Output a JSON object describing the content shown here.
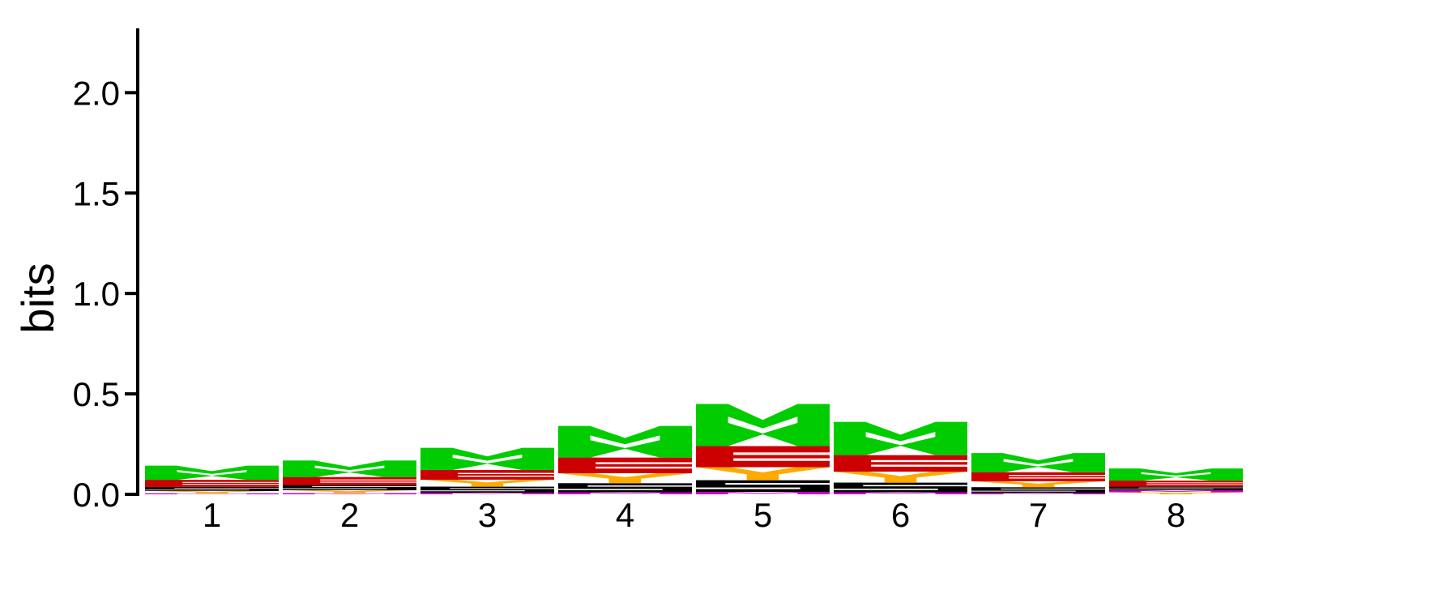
{
  "chart_data": {
    "type": "sequence-logo",
    "ylabel": "bits",
    "ylim": [
      0,
      2.3
    ],
    "y_ticks": [
      "0.0",
      "0.5",
      "1.0",
      "1.5",
      "2.0"
    ],
    "y_tick_values": [
      0,
      0.5,
      1.0,
      1.5,
      2.0
    ],
    "positions": [
      "1",
      "2",
      "3",
      "4",
      "5",
      "6",
      "7",
      "8"
    ],
    "letter_colors": {
      "W": "#00cc00",
      "E": "#cc0000",
      "Y": "#ffaa00",
      "S": "#000000",
      "M": "#cc00cc"
    },
    "stacks": [
      [
        {
          "letter": "M",
          "value": 0.005
        },
        {
          "letter": "Y",
          "value": 0.012
        },
        {
          "letter": "S",
          "value": 0.02
        },
        {
          "letter": "E",
          "value": 0.035
        },
        {
          "letter": "W",
          "value": 0.07
        }
      ],
      [
        {
          "letter": "M",
          "value": 0.006
        },
        {
          "letter": "Y",
          "value": 0.015
        },
        {
          "letter": "S",
          "value": 0.025
        },
        {
          "letter": "E",
          "value": 0.04
        },
        {
          "letter": "W",
          "value": 0.082
        }
      ],
      [
        {
          "letter": "M",
          "value": 0.008
        },
        {
          "letter": "S",
          "value": 0.03
        },
        {
          "letter": "Y",
          "value": 0.035
        },
        {
          "letter": "E",
          "value": 0.048
        },
        {
          "letter": "W",
          "value": 0.11
        }
      ],
      [
        {
          "letter": "M",
          "value": 0.01
        },
        {
          "letter": "S",
          "value": 0.045
        },
        {
          "letter": "Y",
          "value": 0.05
        },
        {
          "letter": "E",
          "value": 0.078
        },
        {
          "letter": "W",
          "value": 0.157
        }
      ],
      [
        {
          "letter": "M",
          "value": 0.012
        },
        {
          "letter": "S",
          "value": 0.058
        },
        {
          "letter": "Y",
          "value": 0.065
        },
        {
          "letter": "E",
          "value": 0.105
        },
        {
          "letter": "W",
          "value": 0.21
        }
      ],
      [
        {
          "letter": "M",
          "value": 0.01
        },
        {
          "letter": "S",
          "value": 0.048
        },
        {
          "letter": "Y",
          "value": 0.055
        },
        {
          "letter": "E",
          "value": 0.082
        },
        {
          "letter": "W",
          "value": 0.165
        }
      ],
      [
        {
          "letter": "M",
          "value": 0.007
        },
        {
          "letter": "S",
          "value": 0.028
        },
        {
          "letter": "Y",
          "value": 0.03
        },
        {
          "letter": "E",
          "value": 0.045
        },
        {
          "letter": "W",
          "value": 0.095
        }
      ],
      [
        {
          "letter": "Y",
          "value": 0.01
        },
        {
          "letter": "M",
          "value": 0.01
        },
        {
          "letter": "S",
          "value": 0.018
        },
        {
          "letter": "E",
          "value": 0.03
        },
        {
          "letter": "W",
          "value": 0.06
        }
      ]
    ]
  }
}
